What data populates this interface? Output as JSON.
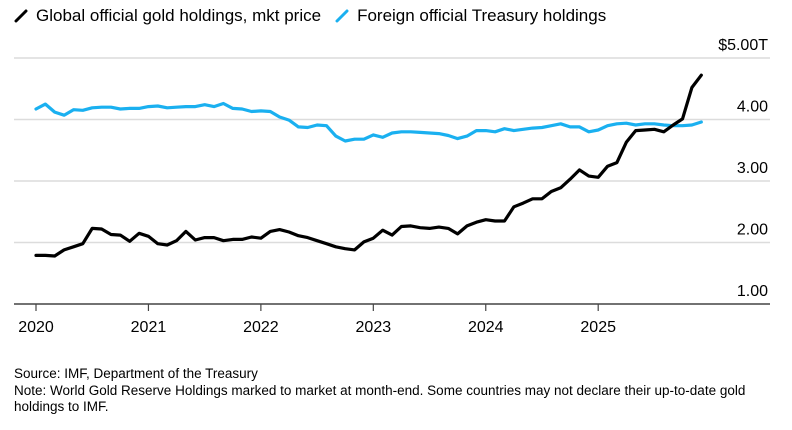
{
  "chart_data": {
    "type": "line",
    "title": "",
    "xlabel": "",
    "ylabel": "",
    "y_unit_label": "$5.00T",
    "ylim": [
      1.0,
      5.0
    ],
    "yticks": [
      1.0,
      2.0,
      3.0,
      4.0,
      5.0
    ],
    "ytick_labels": [
      "1.00",
      "2.00",
      "3.00",
      "4.00",
      "$5.00T"
    ],
    "xtick_labels": [
      "2020",
      "2021",
      "2022",
      "2023",
      "2024",
      "2025"
    ],
    "x_start": "2020-01",
    "x_frequency": "monthly",
    "grid": true,
    "legend_position": "top-left",
    "series": [
      {
        "name": "Global official gold holdings, mkt price",
        "color": "#000000",
        "values": [
          1.79,
          1.79,
          1.78,
          1.88,
          1.93,
          1.98,
          2.23,
          2.22,
          2.13,
          2.12,
          2.02,
          2.15,
          2.1,
          1.98,
          1.96,
          2.03,
          2.18,
          2.04,
          2.08,
          2.08,
          2.03,
          2.05,
          2.05,
          2.09,
          2.07,
          2.18,
          2.21,
          2.17,
          2.11,
          2.08,
          2.03,
          1.98,
          1.93,
          1.9,
          1.88,
          2.01,
          2.07,
          2.2,
          2.12,
          2.26,
          2.27,
          2.24,
          2.23,
          2.25,
          2.23,
          2.14,
          2.27,
          2.33,
          2.37,
          2.35,
          2.35,
          2.58,
          2.64,
          2.71,
          2.71,
          2.83,
          2.89,
          3.03,
          3.18,
          3.08,
          3.06,
          3.24,
          3.3,
          3.63,
          3.82,
          3.83,
          3.84,
          3.8,
          3.91,
          4.01,
          4.52,
          4.72
        ]
      },
      {
        "name": "Foreign official Treasury holdings",
        "color": "#1ab0f0",
        "values": [
          4.17,
          4.25,
          4.12,
          4.07,
          4.16,
          4.15,
          4.19,
          4.2,
          4.2,
          4.17,
          4.18,
          4.18,
          4.21,
          4.22,
          4.19,
          4.2,
          4.21,
          4.21,
          4.24,
          4.21,
          4.26,
          4.18,
          4.17,
          4.13,
          4.14,
          4.13,
          4.04,
          3.99,
          3.88,
          3.87,
          3.91,
          3.9,
          3.73,
          3.65,
          3.68,
          3.68,
          3.75,
          3.71,
          3.78,
          3.8,
          3.8,
          3.79,
          3.78,
          3.77,
          3.74,
          3.69,
          3.73,
          3.82,
          3.82,
          3.8,
          3.85,
          3.82,
          3.84,
          3.86,
          3.87,
          3.9,
          3.93,
          3.88,
          3.88,
          3.8,
          3.83,
          3.9,
          3.93,
          3.94,
          3.91,
          3.93,
          3.93,
          3.91,
          3.9,
          3.9,
          3.91,
          3.96
        ]
      }
    ]
  },
  "legend": {
    "items": [
      {
        "label": "Global official gold holdings, mkt price",
        "color": "#000000"
      },
      {
        "label": "Foreign official Treasury holdings",
        "color": "#1ab0f0"
      }
    ]
  },
  "footer": {
    "source": "Source: IMF, Department of the Treasury",
    "note": "Note: World Gold Reserve Holdings marked to market at month-end. Some countries may not declare their up-to-date gold holdings to IMF."
  }
}
